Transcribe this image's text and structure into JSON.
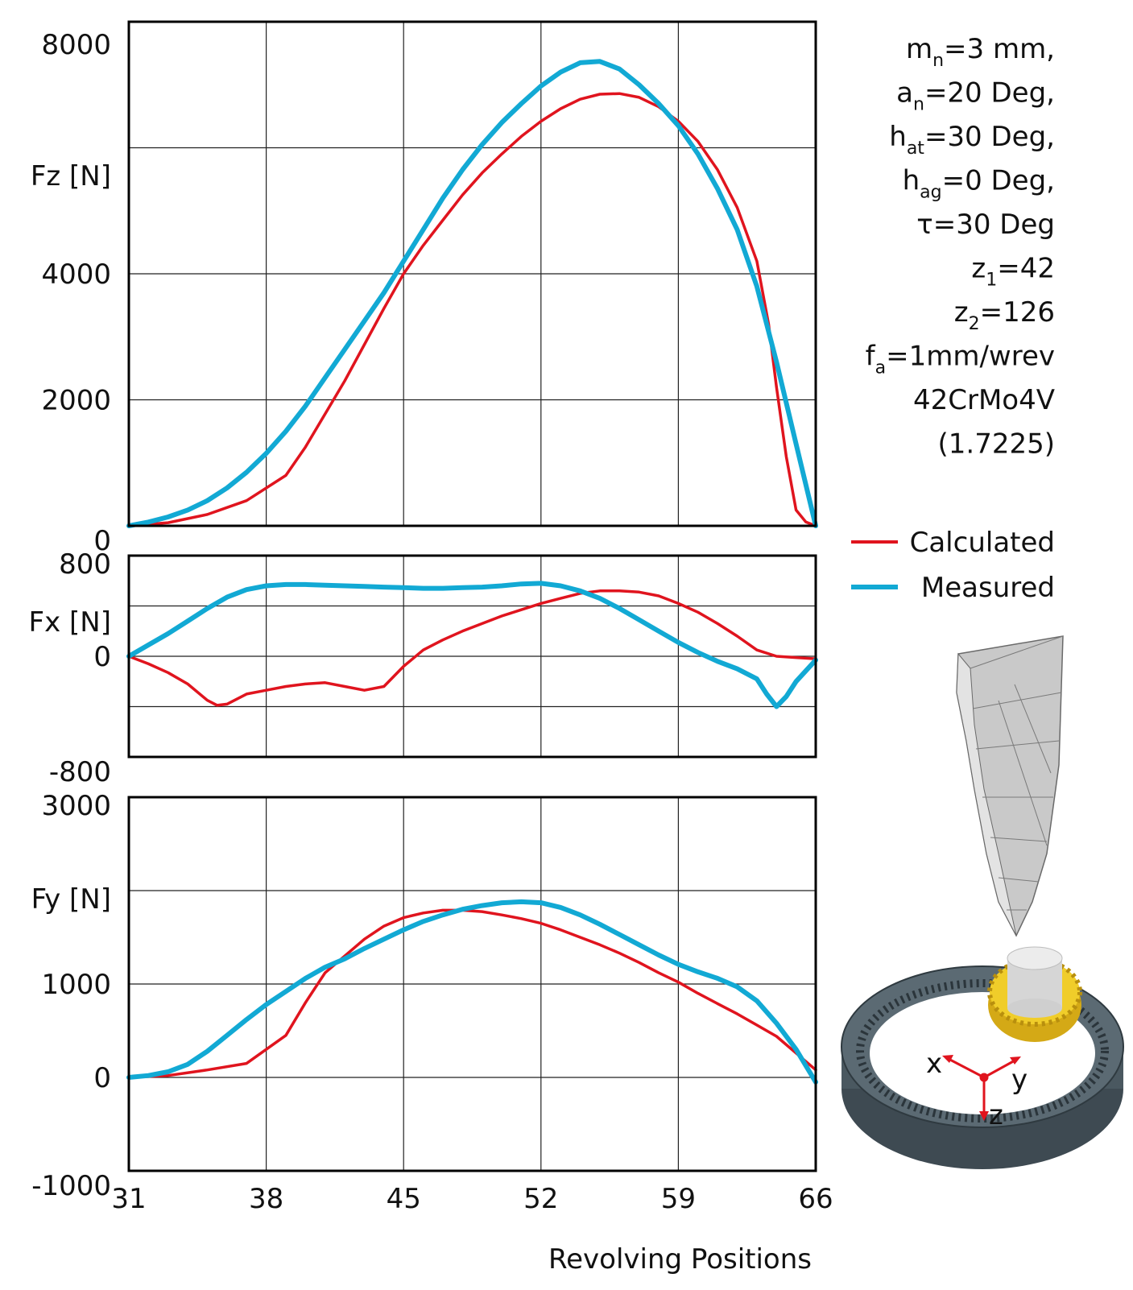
{
  "chart_data": [
    {
      "id": "fz",
      "type": "line",
      "ylabel": "Fz [N]",
      "ylim": [
        0,
        8000
      ],
      "yticks": [
        0,
        2000,
        4000,
        8000
      ],
      "xlim": [
        31,
        66
      ],
      "grid": true,
      "series": [
        {
          "name": "Calculated",
          "color": "#e0141e",
          "x": [
            31,
            33,
            35,
            37,
            39,
            40,
            42,
            44,
            45,
            46,
            47,
            48,
            49,
            50,
            51,
            52,
            53,
            54,
            55,
            56,
            57,
            58,
            59,
            60,
            61,
            62,
            63,
            63.6,
            64,
            64.5,
            65,
            65.5,
            66
          ],
          "y": [
            0,
            50,
            180,
            400,
            800,
            1250,
            2300,
            3450,
            4000,
            4450,
            4850,
            5250,
            5600,
            5900,
            6180,
            6420,
            6620,
            6770,
            6850,
            6860,
            6800,
            6650,
            6420,
            6100,
            5650,
            5050,
            4200,
            3200,
            2200,
            1100,
            250,
            60,
            0
          ]
        },
        {
          "name": "Measured",
          "color": "#12a9d4",
          "x": [
            31,
            32,
            33,
            34,
            35,
            36,
            37,
            38,
            39,
            40,
            41,
            42,
            43,
            44,
            45,
            46,
            47,
            48,
            49,
            50,
            51,
            52,
            53,
            54,
            55,
            56,
            57,
            58,
            59,
            60,
            61,
            62,
            63,
            64,
            65,
            66
          ],
          "y": [
            0,
            60,
            140,
            250,
            400,
            600,
            850,
            1150,
            1500,
            1900,
            2350,
            2800,
            3250,
            3700,
            4200,
            4700,
            5200,
            5650,
            6050,
            6400,
            6700,
            6980,
            7200,
            7350,
            7370,
            7250,
            7000,
            6700,
            6350,
            5900,
            5350,
            4700,
            3800,
            2600,
            1300,
            0
          ]
        }
      ]
    },
    {
      "id": "fx",
      "type": "line",
      "ylabel": "Fx [N]",
      "ylim": [
        -800,
        800
      ],
      "yticks": [
        -800,
        0,
        800
      ],
      "xlim": [
        31,
        66
      ],
      "grid": true,
      "series": [
        {
          "name": "Calculated",
          "color": "#e0141e",
          "x": [
            31,
            32,
            33,
            34,
            35,
            35.5,
            36,
            37,
            38,
            39,
            40,
            41,
            42,
            43,
            44,
            45,
            46,
            47,
            48,
            49,
            50,
            51,
            52,
            53,
            54,
            55,
            56,
            57,
            58,
            59,
            60,
            61,
            62,
            63,
            64,
            65,
            66
          ],
          "y": [
            0,
            -60,
            -130,
            -220,
            -350,
            -390,
            -380,
            -300,
            -270,
            -240,
            -220,
            -210,
            -240,
            -270,
            -240,
            -80,
            50,
            130,
            200,
            260,
            320,
            370,
            420,
            460,
            500,
            520,
            520,
            510,
            480,
            420,
            350,
            260,
            160,
            50,
            0,
            -10,
            -20
          ]
        },
        {
          "name": "Measured",
          "color": "#12a9d4",
          "x": [
            31,
            32,
            33,
            34,
            35,
            36,
            37,
            38,
            39,
            40,
            41,
            42,
            43,
            44,
            45,
            46,
            47,
            48,
            49,
            50,
            51,
            52,
            53,
            54,
            55,
            56,
            57,
            58,
            59,
            60,
            61,
            62,
            63,
            63.5,
            64,
            64.5,
            65,
            66
          ],
          "y": [
            0,
            90,
            180,
            280,
            380,
            470,
            530,
            560,
            570,
            570,
            565,
            560,
            555,
            550,
            545,
            540,
            540,
            545,
            550,
            560,
            575,
            580,
            560,
            520,
            460,
            380,
            290,
            200,
            110,
            30,
            -40,
            -100,
            -180,
            -300,
            -400,
            -320,
            -200,
            -30
          ]
        }
      ]
    },
    {
      "id": "fy",
      "type": "line",
      "ylabel": "Fy  [N]",
      "xlabel": "Revolving Positions",
      "ylim": [
        -1000,
        3000
      ],
      "yticks": [
        -1000,
        0,
        1000,
        3000
      ],
      "xlim": [
        31,
        66
      ],
      "xticks": [
        31,
        38,
        45,
        52,
        59,
        66
      ],
      "grid": true,
      "series": [
        {
          "name": "Calculated",
          "color": "#e0141e",
          "x": [
            31,
            33,
            35,
            37,
            38,
            39,
            40,
            41,
            42,
            43,
            44,
            45,
            46,
            47,
            48,
            49,
            50,
            51,
            52,
            53,
            54,
            55,
            56,
            57,
            58,
            59,
            60,
            61,
            62,
            63,
            64,
            65,
            66
          ],
          "y": [
            0,
            20,
            80,
            150,
            300,
            450,
            800,
            1120,
            1300,
            1480,
            1620,
            1710,
            1760,
            1790,
            1790,
            1775,
            1740,
            1700,
            1650,
            1580,
            1500,
            1420,
            1330,
            1230,
            1120,
            1020,
            900,
            790,
            680,
            560,
            440,
            260,
            80
          ]
        },
        {
          "name": "Measured",
          "color": "#12a9d4",
          "x": [
            31,
            32,
            33,
            34,
            35,
            36,
            37,
            38,
            39,
            40,
            41,
            42,
            43,
            44,
            45,
            46,
            47,
            48,
            49,
            50,
            51,
            52,
            53,
            54,
            55,
            56,
            57,
            58,
            59,
            60,
            61,
            62,
            63,
            64,
            65,
            66
          ],
          "y": [
            0,
            20,
            60,
            140,
            280,
            450,
            620,
            780,
            920,
            1060,
            1180,
            1270,
            1380,
            1480,
            1580,
            1670,
            1740,
            1800,
            1840,
            1870,
            1880,
            1870,
            1820,
            1740,
            1640,
            1530,
            1420,
            1310,
            1210,
            1130,
            1060,
            970,
            820,
            580,
            300,
            -50
          ]
        }
      ]
    }
  ],
  "params": [
    {
      "base": "m",
      "sub": "n",
      "rest": "=3 mm,"
    },
    {
      "base": "a",
      "sub": "n",
      "rest": "=20 Deg,"
    },
    {
      "base": "h",
      "sub": "at",
      "rest": "=30 Deg,"
    },
    {
      "base": "h",
      "sub": "ag",
      "rest": "=0 Deg,"
    },
    {
      "base": "τ",
      "sub": "",
      "rest": "=30 Deg"
    },
    {
      "base": "z",
      "sub": "1",
      "rest": "=42"
    },
    {
      "base": "z",
      "sub": "2",
      "rest": "=126"
    },
    {
      "base": "f",
      "sub": "a",
      "rest": "=1mm/wrev"
    },
    {
      "base": "42CrMo4V",
      "sub": "",
      "rest": ""
    },
    {
      "base": "(1.7225)",
      "sub": "",
      "rest": ""
    }
  ],
  "legend": [
    {
      "label": "Calculated",
      "color": "#e0141e"
    },
    {
      "label": "Measured",
      "color": "#12a9d4"
    }
  ],
  "illustration": {
    "axis_labels": [
      "x",
      "y",
      "z"
    ],
    "colors": {
      "ring": "#4a5860",
      "gear": "#e6c01a",
      "shaft": "#dcdcdc",
      "chip": "#c9c9c9",
      "axes": "#e0141e"
    }
  }
}
